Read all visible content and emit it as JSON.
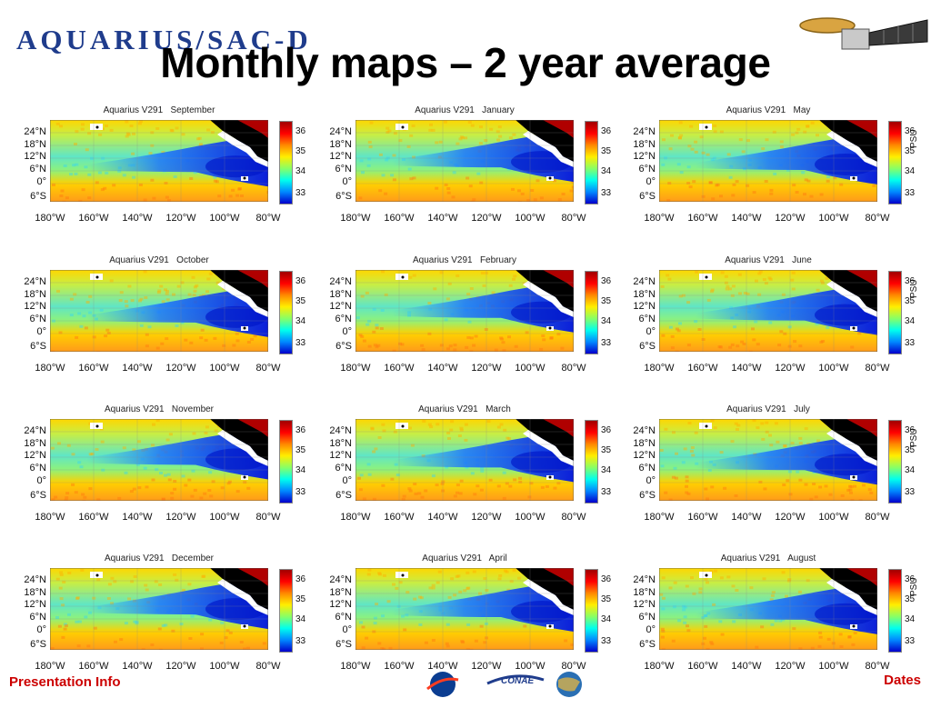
{
  "slide": {
    "title": "Monthly maps – 2 year average",
    "brand_logo": "AQUARIUS/SAC-D",
    "footer_left": "Presentation Info",
    "footer_right": "Dates",
    "partner_logos": [
      "nasa-logo-icon",
      "conae-logo-icon",
      "agency-globe-logo-icon"
    ],
    "conae_text": "CONAE"
  },
  "map_common": {
    "dataset": "Aquarius V291",
    "lat_ticks": [
      "24°N",
      "18°N",
      "12°N",
      "6°N",
      "0°",
      "6°S"
    ],
    "lon_ticks": [
      "180°W",
      "160°W",
      "140°W",
      "120°W",
      "100°W",
      "80°W"
    ],
    "colorbar_ticks": [
      "36",
      "35",
      "34",
      "33"
    ],
    "colorbar_unit": "PSU",
    "colorbar_colors": [
      "#a00000",
      "#ff0000",
      "#ff8800",
      "#ffee00",
      "#88ff66",
      "#00ffee",
      "#0088ff",
      "#0000cc"
    ]
  },
  "panels": [
    {
      "title": "Aquarius V291   September",
      "month": "September",
      "show_unit": false
    },
    {
      "title": "Aquarius V291   January",
      "month": "January",
      "show_unit": false
    },
    {
      "title": "Aquarius V291   May",
      "month": "May",
      "show_unit": true
    },
    {
      "title": "Aquarius V291   October",
      "month": "October",
      "show_unit": false
    },
    {
      "title": "Aquarius V291   February",
      "month": "February",
      "show_unit": false
    },
    {
      "title": "Aquarius V291   June",
      "month": "June",
      "show_unit": true
    },
    {
      "title": "Aquarius V291   November",
      "month": "November",
      "show_unit": false
    },
    {
      "title": "Aquarius V291   March",
      "month": "March",
      "show_unit": false
    },
    {
      "title": "Aquarius V291   July",
      "month": "July",
      "show_unit": true
    },
    {
      "title": "Aquarius V291   December",
      "month": "December",
      "show_unit": false
    },
    {
      "title": "Aquarius V291   April",
      "month": "April",
      "show_unit": false
    },
    {
      "title": "Aquarius V291   August",
      "month": "August",
      "show_unit": true
    }
  ]
}
